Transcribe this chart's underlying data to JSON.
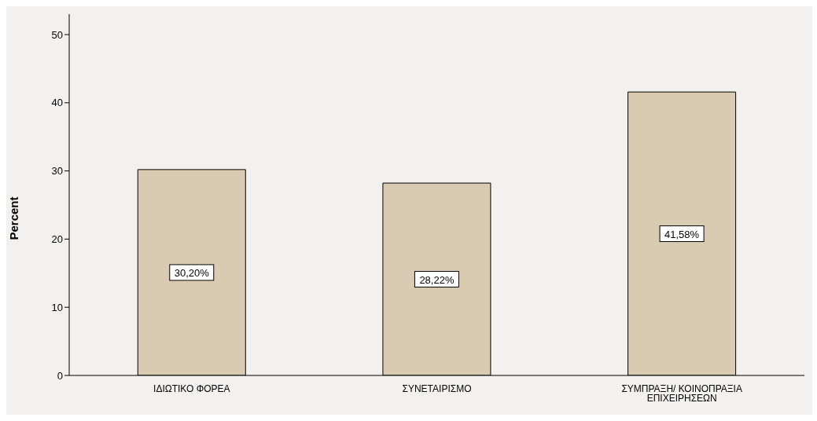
{
  "chart_data": {
    "type": "bar",
    "ylabel": "Percent",
    "categories": [
      "ΙΔΙΩΤΙΚΟ ΦΟΡΕΑ",
      "ΣΥΝΕΤΑΙΡΙΣΜΟ",
      "ΣΥΜΠΡΑΞΗ/ ΚΟΙΝΟΠΡΑΞΙΑ ΕΠΙΧΕΙΡΗΣΕΩΝ"
    ],
    "values": [
      30.2,
      28.22,
      41.58
    ],
    "value_labels": [
      "30,20%",
      "28,22%",
      "41,58%"
    ],
    "color": "#d8cbb1",
    "ylim": [
      0,
      53
    ],
    "yticks": [
      0,
      10,
      20,
      30,
      40,
      50
    ]
  }
}
